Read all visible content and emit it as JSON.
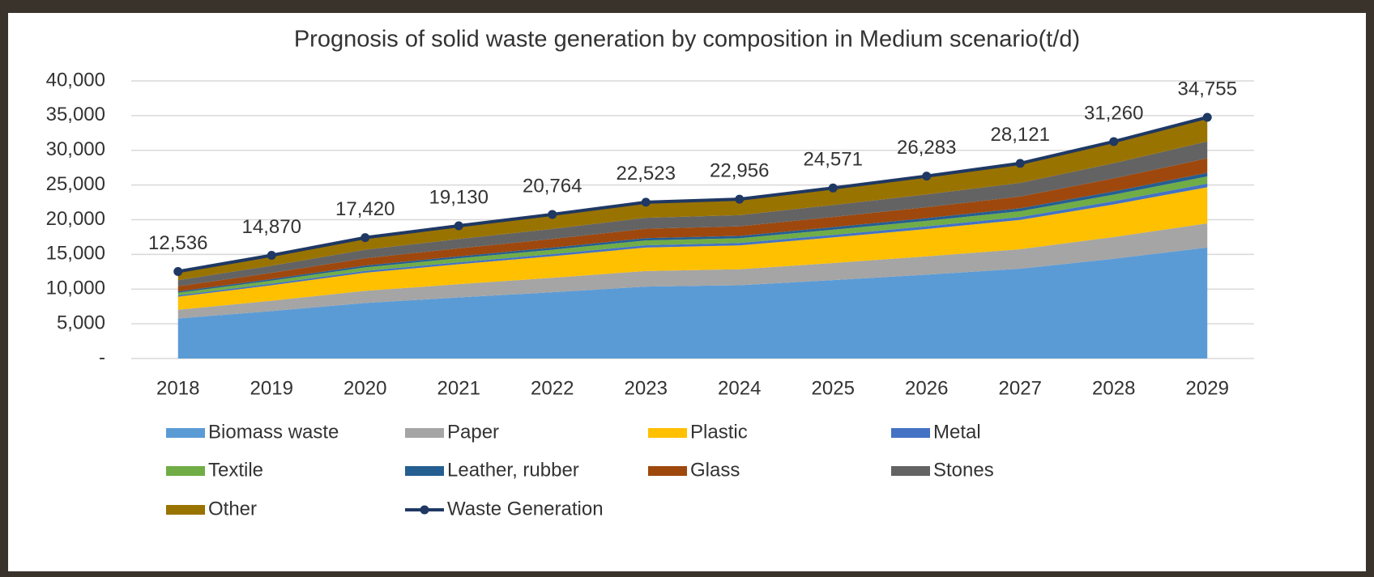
{
  "chart_data": {
    "type": "area",
    "title": "Prognosis of solid waste generation by composition in Medium scenario(t/d)",
    "categories": [
      "2018",
      "2019",
      "2020",
      "2021",
      "2022",
      "2023",
      "2024",
      "2025",
      "2026",
      "2027",
      "2028",
      "2029"
    ],
    "ylim": [
      0,
      40000
    ],
    "yticks": [
      {
        "value": 0,
        "label": "-"
      },
      {
        "value": 5000,
        "label": "5,000"
      },
      {
        "value": 10000,
        "label": "10,000"
      },
      {
        "value": 15000,
        "label": "15,000"
      },
      {
        "value": 20000,
        "label": "20,000"
      },
      {
        "value": 25000,
        "label": "25,000"
      },
      {
        "value": 30000,
        "label": "30,000"
      },
      {
        "value": 35000,
        "label": "35,000"
      },
      {
        "value": 40000,
        "label": "40,000"
      }
    ],
    "grid": true,
    "series": [
      {
        "name": "Biomass waste",
        "color": "#5b9bd5",
        "values": [
          5770,
          6840,
          8010,
          8800,
          9550,
          10360,
          10560,
          11300,
          12090,
          12940,
          14380,
          15990
        ]
      },
      {
        "name": "Paper",
        "color": "#a5a5a5",
        "values": [
          1250,
          1490,
          1740,
          1910,
          2080,
          2250,
          2300,
          2460,
          2630,
          2810,
          3130,
          3480
        ]
      },
      {
        "name": "Plastic",
        "color": "#ffc000",
        "values": [
          1880,
          2230,
          2610,
          2870,
          3110,
          3380,
          3440,
          3690,
          3940,
          4220,
          4690,
          5210
        ]
      },
      {
        "name": "Metal",
        "color": "#4472c4",
        "values": [
          190,
          220,
          260,
          290,
          310,
          340,
          340,
          370,
          390,
          420,
          470,
          520
        ]
      },
      {
        "name": "Textile",
        "color": "#70ad47",
        "values": [
          380,
          450,
          520,
          570,
          620,
          680,
          690,
          740,
          790,
          840,
          940,
          1040
        ]
      },
      {
        "name": "Leather, rubber",
        "color": "#255e91",
        "values": [
          190,
          220,
          260,
          290,
          310,
          340,
          340,
          370,
          390,
          420,
          470,
          520
        ]
      },
      {
        "name": "Glass",
        "color": "#9e480e",
        "values": [
          750,
          890,
          1050,
          1150,
          1250,
          1350,
          1380,
          1470,
          1580,
          1690,
          1880,
          2090
        ]
      },
      {
        "name": "Stones",
        "color": "#636363",
        "values": [
          880,
          1040,
          1220,
          1340,
          1450,
          1580,
          1610,
          1720,
          1840,
          1970,
          2190,
          2430
        ]
      },
      {
        "name": "Other",
        "color": "#997300",
        "values": [
          1250,
          1490,
          1740,
          1910,
          2080,
          2250,
          2300,
          2460,
          2630,
          2810,
          3130,
          3480
        ]
      },
      {
        "name": "Waste Generation",
        "type": "line",
        "color": "#1f3864",
        "values": [
          12536,
          14870,
          17420,
          19130,
          20764,
          22523,
          22956,
          24571,
          26283,
          28121,
          31260,
          34755
        ],
        "value_labels": [
          "12,536",
          "14,870",
          "17,420",
          "19,130",
          "20,764",
          "22,523",
          "22,956",
          "24,571",
          "26,283",
          "28,121",
          "31,260",
          "34,755"
        ]
      }
    ]
  }
}
